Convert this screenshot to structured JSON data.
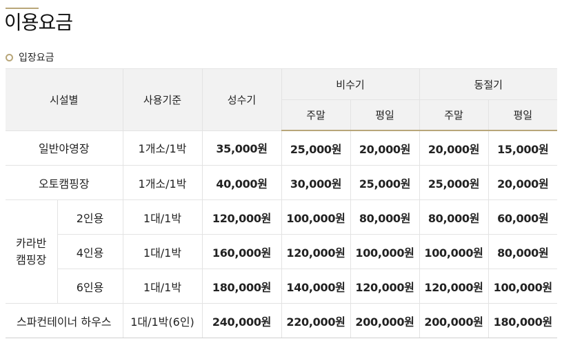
{
  "page": {
    "title": "이용요금"
  },
  "section": {
    "label": "입장요금"
  },
  "table": {
    "headers": {
      "facility": "시설별",
      "basis": "사용기준",
      "peak": "성수기",
      "off_peak": "비수기",
      "shoulder": "동절기",
      "weekend": "주말",
      "weekday": "평일"
    },
    "rows": [
      {
        "facility": "일반야영장",
        "basis": "1개소/1박",
        "prices": [
          "35,000원",
          "25,000원",
          "20,000원",
          "20,000원",
          "15,000원"
        ]
      },
      {
        "facility": "오토캠핑장",
        "basis": "1개소/1박",
        "prices": [
          "40,000원",
          "30,000원",
          "25,000원",
          "25,000원",
          "20,000원"
        ]
      },
      {
        "group": [
          "카라반",
          "캠핑장"
        ],
        "facility": "2인용",
        "basis": "1대/1박",
        "prices": [
          "120,000원",
          "100,000원",
          "80,000원",
          "80,000원",
          "60,000원"
        ]
      },
      {
        "facility": "4인용",
        "basis": "1대/1박",
        "prices": [
          "160,000원",
          "120,000원",
          "100,000원",
          "100,000원",
          "80,000원"
        ]
      },
      {
        "facility": "6인용",
        "basis": "1대/1박",
        "prices": [
          "180,000원",
          "140,000원",
          "120,000원",
          "120,000원",
          "100,000원"
        ]
      },
      {
        "facility": "스파컨테이너 하우스",
        "basis": "1대/1박(6인)",
        "prices": [
          "240,000원",
          "220,000원",
          "200,000원",
          "200,000원",
          "180,000원"
        ]
      }
    ]
  },
  "colors": {
    "accent": "#b8a679",
    "header_bg": "#f2f2f2",
    "border": "#e3e3e3"
  }
}
